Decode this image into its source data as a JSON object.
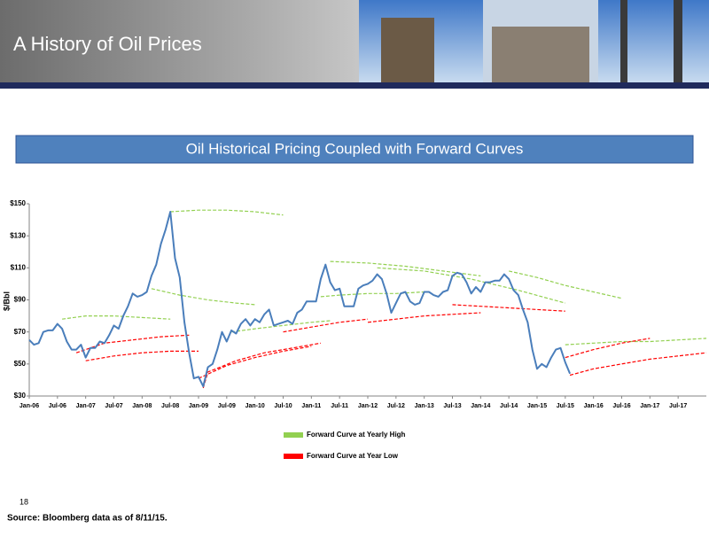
{
  "header": {
    "title": "A History of Oil Prices"
  },
  "banner": {
    "title": "Oil Historical Pricing Coupled with Forward Curves"
  },
  "chart_data": {
    "type": "line",
    "ylabel": "$/Bbl",
    "xlim": [
      0,
      144
    ],
    "ylim": [
      30,
      150
    ],
    "grid": false,
    "legend": "bottom",
    "xticks": [
      {
        "value": 0,
        "label": "Jan-06"
      },
      {
        "value": 6,
        "label": "Jul-06"
      },
      {
        "value": 12,
        "label": "Jan-07"
      },
      {
        "value": 18,
        "label": "Jul-07"
      },
      {
        "value": 24,
        "label": "Jan-08"
      },
      {
        "value": 30,
        "label": "Jul-08"
      },
      {
        "value": 36,
        "label": "Jan-09"
      },
      {
        "value": 42,
        "label": "Jul-09"
      },
      {
        "value": 48,
        "label": "Jan-10"
      },
      {
        "value": 54,
        "label": "Jul-10"
      },
      {
        "value": 60,
        "label": "Jan-11"
      },
      {
        "value": 66,
        "label": "Jul-11"
      },
      {
        "value": 72,
        "label": "Jan-12"
      },
      {
        "value": 78,
        "label": "Jul-12"
      },
      {
        "value": 84,
        "label": "Jan-13"
      },
      {
        "value": 90,
        "label": "Jul-13"
      },
      {
        "value": 96,
        "label": "Jan-14"
      },
      {
        "value": 102,
        "label": "Jul-14"
      },
      {
        "value": 108,
        "label": "Jan-15"
      },
      {
        "value": 114,
        "label": "Jul-15"
      },
      {
        "value": 120,
        "label": "Jan-16"
      },
      {
        "value": 126,
        "label": "Jul-16"
      },
      {
        "value": 132,
        "label": "Jan-17"
      },
      {
        "value": 138,
        "label": "Jul-17"
      }
    ],
    "yticks": [
      {
        "value": 30,
        "label": "$30"
      },
      {
        "value": 50,
        "label": "$50"
      },
      {
        "value": 70,
        "label": "$70"
      },
      {
        "value": 90,
        "label": "$90"
      },
      {
        "value": 110,
        "label": "$110"
      },
      {
        "value": 130,
        "label": "$130"
      },
      {
        "value": 150,
        "label": "$150"
      }
    ],
    "series": [
      {
        "color": "#4a7ebb",
        "x": [
          0,
          1,
          2,
          3,
          4,
          5,
          6,
          7,
          8,
          9,
          10,
          11,
          12,
          13,
          14,
          15,
          16,
          17,
          18,
          19,
          20,
          21,
          22,
          23,
          24,
          25,
          26,
          27,
          28,
          29,
          30,
          31,
          32,
          33,
          34,
          35,
          36,
          37,
          38,
          39,
          40,
          41,
          42,
          43,
          44,
          45,
          46,
          47,
          48,
          49,
          50,
          51,
          52,
          53,
          54,
          55,
          56,
          57,
          58,
          59,
          60,
          61,
          62,
          63,
          64,
          65,
          66,
          67,
          68,
          69,
          70,
          71,
          72,
          73,
          74,
          75,
          76,
          77,
          78,
          79,
          80,
          81,
          82,
          83,
          84,
          85,
          86,
          87,
          88,
          89,
          90,
          91,
          92,
          93,
          94,
          95,
          96,
          97,
          98,
          99,
          100,
          101,
          102,
          103,
          104,
          105,
          106,
          107,
          108,
          109,
          110,
          111,
          112,
          113,
          114,
          115
        ],
        "values": [
          65,
          62,
          63,
          70,
          71,
          71,
          75,
          72,
          64,
          59,
          59,
          62,
          54,
          60,
          60,
          64,
          63,
          68,
          74,
          72,
          80,
          86,
          94,
          92,
          93,
          95,
          105,
          112,
          125,
          134,
          145,
          116,
          104,
          76,
          57,
          41,
          42,
          36,
          48,
          50,
          59,
          70,
          64,
          71,
          69,
          75,
          78,
          74,
          78,
          76,
          81,
          84,
          74,
          75,
          76,
          77,
          75,
          82,
          84,
          89,
          89,
          89,
          103,
          112,
          101,
          96,
          97,
          86,
          86,
          86,
          97,
          99,
          100,
          102,
          106,
          103,
          94,
          82,
          88,
          94,
          95,
          89,
          87,
          88,
          95,
          95,
          93,
          92,
          95,
          96,
          105,
          107,
          106,
          101,
          94,
          98,
          95,
          101,
          101,
          102,
          102,
          106,
          103,
          96,
          93,
          84,
          76,
          59,
          47,
          50,
          48,
          54,
          59,
          60,
          51,
          44
        ]
      }
    ],
    "forward_curves": [
      {
        "name": "Forward Curve at Yearly High",
        "color": "#92d050",
        "curves": [
          {
            "x": [
              7,
              12,
              18,
              24,
              30
            ],
            "values": [
              78,
              80,
              80,
              79,
              78
            ]
          },
          {
            "x": [
              30,
              36,
              42,
              48,
              54
            ],
            "values": [
              145,
              146,
              146,
              145,
              143
            ]
          },
          {
            "x": [
              26,
              32,
              38,
              44,
              48
            ],
            "values": [
              97,
              93,
              90,
              88,
              87
            ]
          },
          {
            "x": [
              43,
              48,
              54,
              60,
              64
            ],
            "values": [
              70,
              72,
              74,
              76,
              77
            ]
          },
          {
            "x": [
              62,
              66,
              72,
              78,
              84
            ],
            "values": [
              92,
              93,
              94,
              94,
              95
            ]
          },
          {
            "x": [
              64,
              72,
              80,
              88,
              96
            ],
            "values": [
              114,
              113,
              111,
              108,
              105
            ]
          },
          {
            "x": [
              74,
              84,
              94,
              104,
              114
            ],
            "values": [
              110,
              108,
              103,
              96,
              88
            ]
          },
          {
            "x": [
              102,
              108,
              114,
              120,
              126
            ],
            "values": [
              108,
              104,
              99,
              95,
              91
            ]
          },
          {
            "x": [
              114,
              120,
              126,
              132,
              138,
              144
            ],
            "values": [
              62,
              63,
              64,
              64,
              65,
              66
            ]
          }
        ]
      },
      {
        "name": "Forward Curve at Year Low",
        "color": "#ff0000",
        "curves": [
          {
            "x": [
              10,
              16,
              22,
              28,
              34
            ],
            "values": [
              57,
              63,
              65,
              67,
              68
            ]
          },
          {
            "x": [
              12,
              18,
              24,
              30,
              36
            ],
            "values": [
              52,
              55,
              57,
              58,
              58
            ]
          },
          {
            "x": [
              36,
              42,
              48,
              54,
              60
            ],
            "values": [
              41,
              49,
              54,
              58,
              61
            ]
          },
          {
            "x": [
              37,
              38,
              44,
              50,
              56,
              62
            ],
            "values": [
              35,
              45,
              52,
              57,
              60,
              63
            ]
          },
          {
            "x": [
              54,
              60,
              66,
              72
            ],
            "values": [
              70,
              73,
              76,
              78
            ]
          },
          {
            "x": [
              72,
              78,
              84,
              90,
              96
            ],
            "values": [
              76,
              78,
              80,
              81,
              82
            ]
          },
          {
            "x": [
              90,
              96,
              102,
              108,
              114
            ],
            "values": [
              87,
              86,
              85,
              84,
              83
            ]
          },
          {
            "x": [
              114,
              120,
              126,
              132
            ],
            "values": [
              54,
              59,
              63,
              66
            ]
          },
          {
            "x": [
              115,
              120,
              126,
              132,
              138,
              144
            ],
            "values": [
              43,
              47,
              50,
              53,
              55,
              57
            ]
          }
        ]
      }
    ]
  },
  "footer": {
    "page_number": "18",
    "source": "Source: Bloomberg data as of 8/11/15."
  }
}
